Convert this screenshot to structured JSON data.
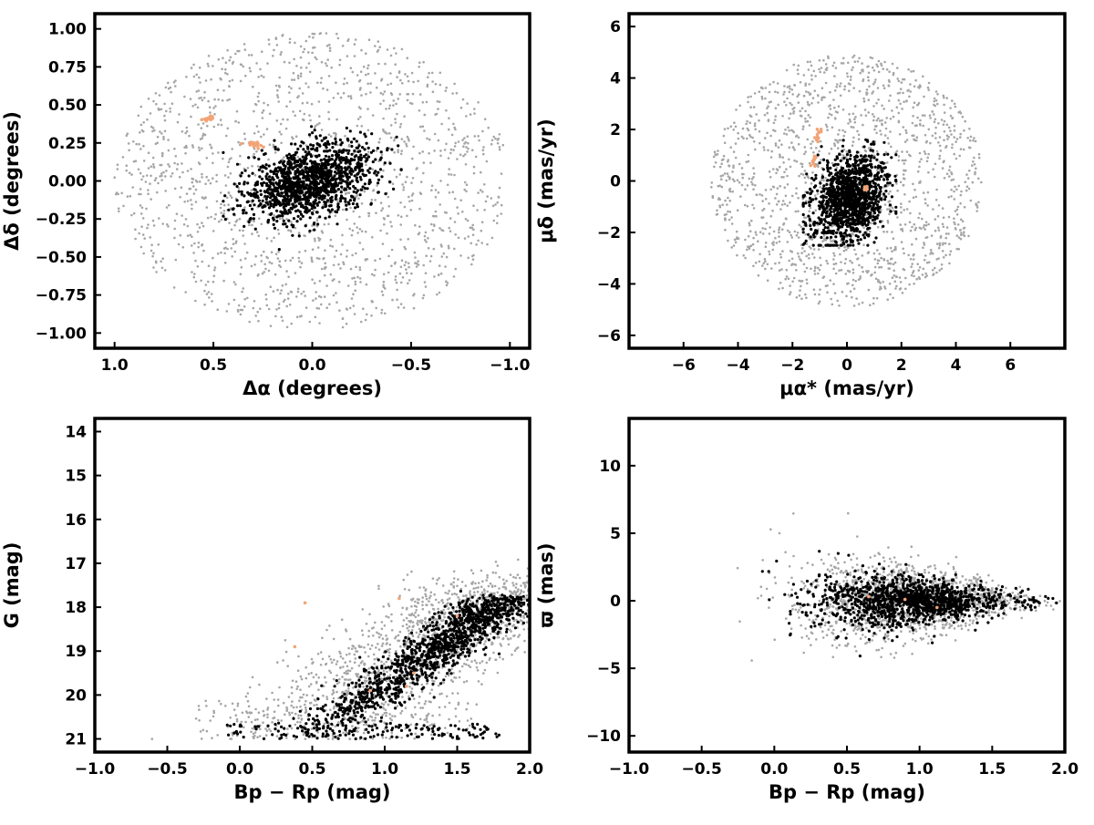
{
  "figure": {
    "colors": {
      "field": "#a6a6a6",
      "members": "#000000",
      "highlight": "#f2a477",
      "frame": "#000000",
      "background": "#ffffff"
    }
  },
  "chart_data": [
    {
      "id": "sky",
      "type": "scatter",
      "title": "",
      "xlabel": "Δα (degrees)",
      "ylabel": "Δδ (degrees)",
      "xlim": [
        1.1,
        -1.1
      ],
      "ylim": [
        -1.1,
        1.1
      ],
      "x_inverted": true,
      "xticks": [
        1.0,
        0.5,
        0.0,
        -0.5,
        -1.0
      ],
      "xtick_labels": [
        "1.0",
        "0.5",
        "0.0",
        "−0.5",
        "−1.0"
      ],
      "yticks": [
        1.0,
        0.75,
        0.5,
        0.25,
        0.0,
        -0.25,
        -0.5,
        -0.75,
        -1.0
      ],
      "ytick_labels": [
        "1.00",
        "0.75",
        "0.50",
        "0.25",
        "0.00",
        "−0.25",
        "−0.50",
        "−0.75",
        "−1.00"
      ],
      "grid": false,
      "series": [
        {
          "role": "field",
          "distribution": "disk",
          "center": [
            0.0,
            0.0
          ],
          "radius": [
            1.0,
            0.98
          ]
        },
        {
          "role": "members",
          "distribution": "ellipse",
          "center": [
            0.02,
            0.0
          ],
          "sigma": [
            0.17,
            0.11
          ],
          "tilt_deg": -30,
          "range": {
            "x": [
              -0.45,
              0.45
            ],
            "y": [
              -0.45,
              0.45
            ]
          }
        },
        {
          "role": "highlight",
          "distribution": "clumps",
          "clumps": [
            [
              0.52,
              0.41,
              0.04,
              0.02
            ],
            [
              0.29,
              0.24,
              0.05,
              0.02
            ]
          ]
        }
      ]
    },
    {
      "id": "proper-motion",
      "type": "scatter",
      "title": "",
      "xlabel": "μα* (mas/yr)",
      "ylabel": "μδ (mas/yr)",
      "xlim": [
        -8,
        8
      ],
      "ylim": [
        -6.5,
        6.5
      ],
      "xticks": [
        -6,
        -4,
        -2,
        0,
        2,
        4,
        6
      ],
      "xtick_labels": [
        "−6",
        "−4",
        "−2",
        "0",
        "2",
        "4",
        "6"
      ],
      "yticks": [
        6,
        4,
        2,
        0,
        -2,
        -4,
        -6
      ],
      "ytick_labels": [
        "6",
        "4",
        "2",
        "0",
        "−2",
        "−4",
        "−6"
      ],
      "grid": false,
      "series": [
        {
          "role": "field",
          "distribution": "disk",
          "center": [
            0.0,
            0.0
          ],
          "radius": [
            5.0,
            4.9
          ]
        },
        {
          "role": "members",
          "distribution": "ellipse",
          "center": [
            0.1,
            -0.7
          ],
          "sigma": [
            0.6,
            0.85
          ],
          "tilt_deg": -25,
          "range": {
            "x": [
              -1.6,
              1.8
            ],
            "y": [
              -2.5,
              1.6
            ]
          }
        },
        {
          "role": "highlight",
          "distribution": "clumps",
          "clumps": [
            [
              -1.1,
              1.8,
              0.2,
              0.3
            ],
            [
              -1.2,
              0.8,
              0.1,
              0.2
            ],
            [
              0.7,
              -0.3,
              0.1,
              0.1
            ]
          ]
        }
      ]
    },
    {
      "id": "cmd",
      "type": "scatter",
      "title": "",
      "xlabel": "Bp − Rp (mag)",
      "ylabel": "G (mag)",
      "xlim": [
        -1.0,
        2.0
      ],
      "ylim": [
        21.3,
        13.7
      ],
      "y_inverted": true,
      "xticks": [
        -1.0,
        -0.5,
        0.0,
        0.5,
        1.0,
        1.5,
        2.0
      ],
      "xtick_labels": [
        "−1.0",
        "−0.5",
        "0.0",
        "0.5",
        "1.0",
        "1.5",
        "2.0"
      ],
      "yticks": [
        21,
        20,
        19,
        18,
        17,
        16,
        15,
        14
      ],
      "ytick_labels": [
        "21",
        "20",
        "19",
        "18",
        "17",
        "16",
        "15",
        "14"
      ],
      "grid": false,
      "series": [
        {
          "role": "field",
          "distribution": "sequence",
          "x_range": [
            0.3,
            2.0
          ],
          "y_range": [
            17.4,
            21.0
          ],
          "spread": 0.22,
          "limit_y": 21.0
        },
        {
          "role": "members",
          "distribution": "sequence",
          "x_range": [
            0.5,
            1.85
          ],
          "y_range": [
            17.8,
            21.0
          ],
          "spread": 0.09,
          "limit_y": 21.0
        },
        {
          "role": "highlight",
          "points": [
            [
              0.9,
              19.9
            ],
            [
              1.15,
              19.8
            ],
            [
              1.2,
              19.5
            ],
            [
              1.5,
              18.2
            ],
            [
              0.38,
              18.9
            ],
            [
              0.45,
              17.9
            ],
            [
              1.1,
              17.8
            ]
          ]
        }
      ]
    },
    {
      "id": "parallax",
      "type": "scatter",
      "title": "",
      "xlabel": "Bp − Rp (mag)",
      "ylabel": "ϖ (mas)",
      "xlim": [
        -1.0,
        2.0
      ],
      "ylim": [
        -11.2,
        13.5
      ],
      "xticks": [
        -1.0,
        -0.5,
        0.0,
        0.5,
        1.0,
        1.5,
        2.0
      ],
      "xtick_labels": [
        "−1.0",
        "−0.5",
        "0.0",
        "0.5",
        "1.0",
        "1.5",
        "2.0"
      ],
      "yticks": [
        10,
        5,
        0,
        -5,
        -10
      ],
      "ytick_labels": [
        "10",
        "5",
        "0",
        "−5",
        "−10"
      ],
      "grid": false,
      "series": [
        {
          "role": "field",
          "distribution": "funnel",
          "x_center": 0.95,
          "x_sigma": 0.38,
          "x_range": [
            -0.7,
            2.0
          ],
          "y_sigma_at_blue": 2.8,
          "y_sigma_at_red": 0.3
        },
        {
          "role": "members",
          "distribution": "funnel",
          "x_center": 0.95,
          "x_sigma": 0.33,
          "x_range": [
            -0.35,
            2.0
          ],
          "y_sigma_at_blue": 1.7,
          "y_sigma_at_red": 0.2
        },
        {
          "role": "highlight",
          "points": [
            [
              0.9,
              0.1
            ],
            [
              1.12,
              -0.5
            ],
            [
              0.65,
              0.3
            ]
          ]
        }
      ]
    }
  ]
}
